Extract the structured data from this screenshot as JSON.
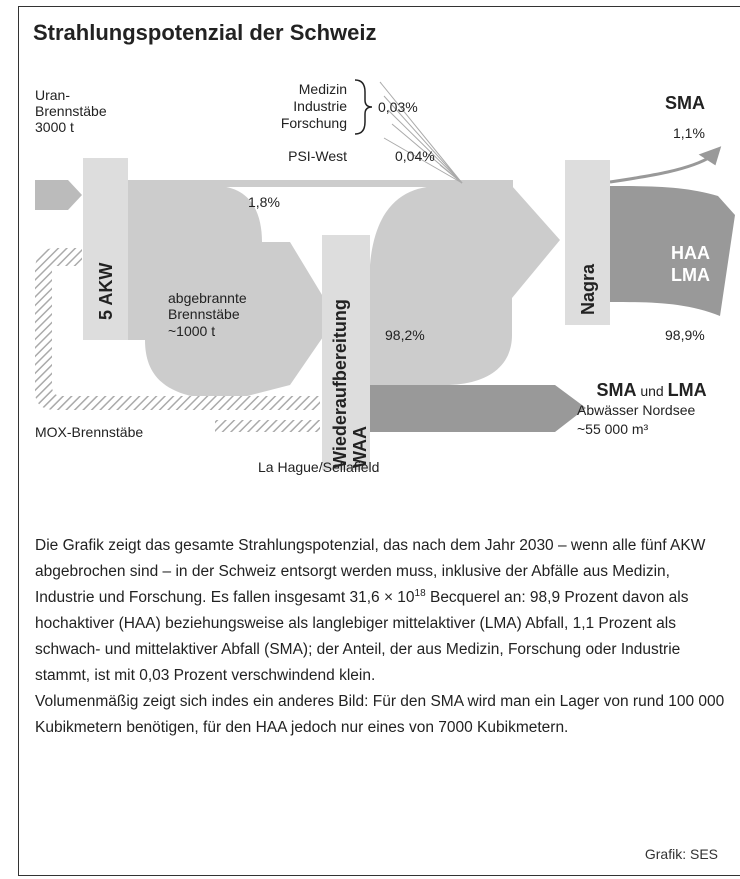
{
  "title": "Strahlungspotenzial der Schweiz",
  "diagram": {
    "uran": [
      "Uran-",
      "Brennstäbe",
      "3000 t"
    ],
    "sources": [
      "Medizin",
      "Industrie",
      "Forschung"
    ],
    "sources_share": "0,03%",
    "psi": "PSI-West",
    "psi_share": "0,04%",
    "sma": "SMA",
    "sma_share": "1,1%",
    "direct_share": "1,8%",
    "akw": "5 AKW",
    "spent": [
      "abgebrannte",
      "Brennstäbe",
      "~1000 t"
    ],
    "waa": [
      "Wiederaufbereitung",
      "WAA"
    ],
    "waa_share": "98,2%",
    "nagra": "Nagra",
    "haa": [
      "HAA",
      "LMA"
    ],
    "haa_share": "98,9%",
    "sea": {
      "heading": [
        "SMA",
        " und ",
        "LMA"
      ],
      "lines": [
        "Abwässer Nordsee",
        "~55 000 m³"
      ]
    },
    "mox": "MOX-Brennstäbe",
    "plant": "La Hague/Sellafield"
  },
  "text": {
    "paragraphs": [
      {
        "before": "Die Grafik zeigt das gesamte Strahlungspotenzial, das nach dem Jahr 2030 – wenn alle fünf AKW abgebrochen sind – in der Schweiz entsorgt werden muss, inklusive der Abfälle aus Medizin, Industrie und Forschung. Es fallen insgesamt 31,6 × 10",
        "sup": "18",
        "after": " Becquerel an: 98,9 Prozent davon als hochaktiver (HAA) beziehungsweise als langlebiger mittelaktiver (LMA) Abfall, 1,1 Prozent als schwach- und mittelaktiver Abfall (SMA); der Anteil, der aus Medizin, Forschung oder Industrie stammt, ist mit 0,03 Prozent verschwindend klein."
      },
      {
        "before": "Volumenmäßig zeigt sich indes ein anderes Bild: Für den SMA wird man ein Lager von rund 100 000 Kubikmetern benötigen, für den HAA jedoch nur eines von 7000 Kubikmetern."
      }
    ]
  },
  "source": "Grafik: SES"
}
